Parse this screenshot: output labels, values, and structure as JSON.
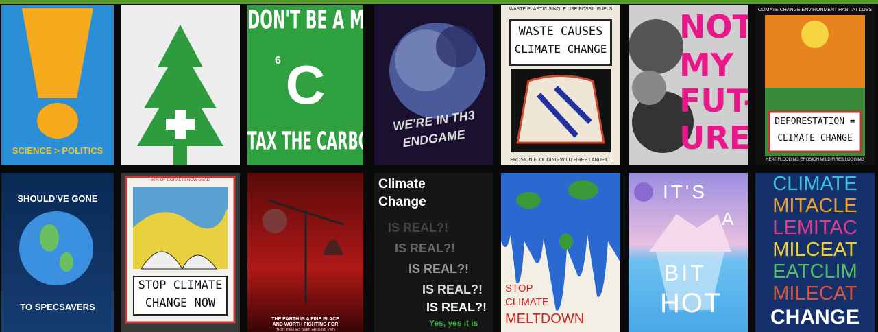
{
  "posters": [
    [
      "SCIENCE > POLITICS"
    ],
    [
      "DON'T BE A MORON",
      "6",
      "C",
      "TAX THE CARBON"
    ],
    [
      "WE'RE IN TH3",
      "ENDGAME"
    ],
    [
      "WASTE CAUSES",
      "CLIMATE CHANGE",
      "WASTE PLASTIC SINGLE USE FOSSIL FUELS",
      "EROSION FLOODING WILD FIRES LANDFILL"
    ],
    [
      "NOT",
      "MY",
      "FUT-",
      "URE"
    ],
    [
      "DEFORESTATION =",
      "CLIMATE CHANGE",
      "CLIMATE CHANGE ENVIRONMENT HABITAT LOSS",
      "HEAT FLOODING EROSION WILD FIRES LOGGING"
    ],
    [
      "SHOULD'VE GONE",
      "TO SPECSAVERS"
    ],
    [
      "STOP CLIMATE",
      "CHANGE NOW",
      "50% OF CORAL IS NOW DEAD"
    ],
    [
      "THE EARTH IS A FINE PLACE",
      "AND WORTH FIGHTING FOR",
      "(NOTHING HAS BEEN AROUND YET)"
    ],
    [
      "Climate",
      "Change",
      "IS REAL?!",
      "Yes, yes it is"
    ],
    [
      "STOP",
      "CLIMATE",
      "MELTDOWN"
    ],
    [
      "IT'S",
      "A",
      "BIT",
      "HOT"
    ],
    [
      "CLIMATE",
      "MITACLE",
      "LEMITAC",
      "MILCEAT",
      "EATCLIM",
      "MILECAT",
      "CHANGE"
    ]
  ]
}
